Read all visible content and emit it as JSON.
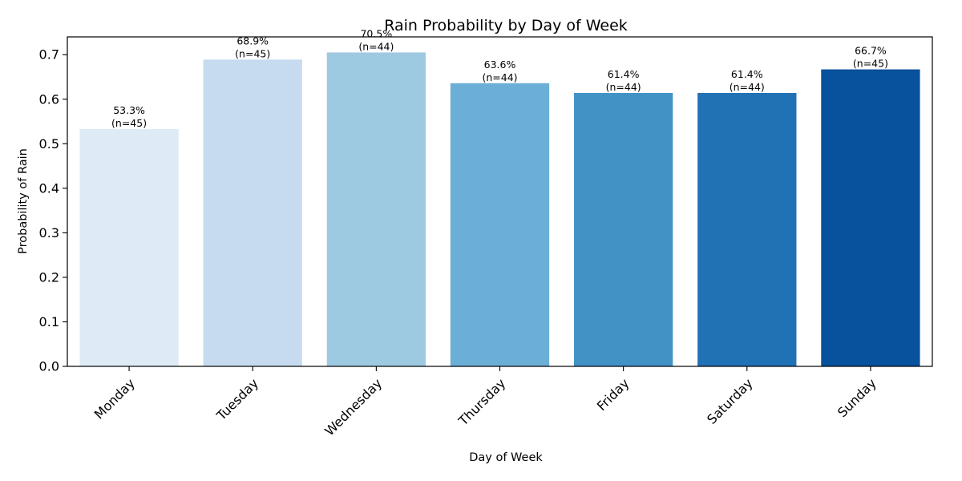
{
  "chart_data": {
    "type": "bar",
    "title": "Rain Probability by Day of Week",
    "xlabel": "Day of Week",
    "ylabel": "Probability of Rain",
    "ylim": [
      0,
      0.74
    ],
    "yticks": [
      0.0,
      0.1,
      0.2,
      0.3,
      0.4,
      0.5,
      0.6,
      0.7
    ],
    "ytick_labels": [
      "0.0",
      "0.1",
      "0.2",
      "0.3",
      "0.4",
      "0.5",
      "0.6",
      "0.7"
    ],
    "categories": [
      "Monday",
      "Tuesday",
      "Wednesday",
      "Thursday",
      "Friday",
      "Saturday",
      "Sunday"
    ],
    "values": [
      0.533,
      0.689,
      0.705,
      0.636,
      0.614,
      0.614,
      0.667
    ],
    "percent_labels": [
      "53.3%",
      "68.9%",
      "70.5%",
      "63.6%",
      "61.4%",
      "61.4%",
      "66.7%"
    ],
    "count_labels": [
      "(n=45)",
      "(n=45)",
      "(n=44)",
      "(n=44)",
      "(n=44)",
      "(n=44)",
      "(n=45)"
    ],
    "colors": [
      "#deebf7",
      "#c6dbef",
      "#9ecae1",
      "#6baed6",
      "#4292c6",
      "#2171b5",
      "#08519c"
    ],
    "grid": false,
    "legend": "none"
  }
}
